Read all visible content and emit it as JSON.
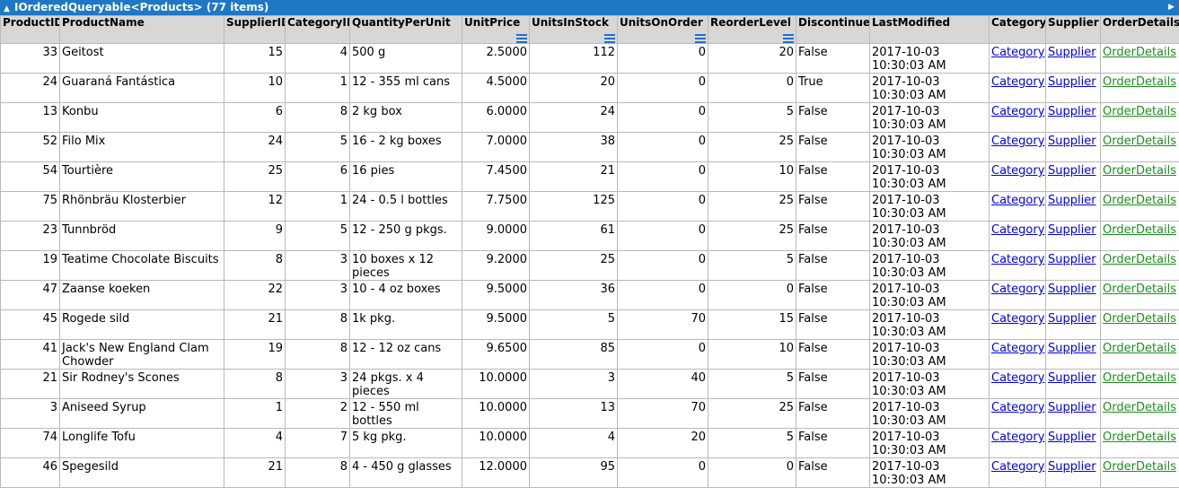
{
  "header": {
    "title": "IOrderedQueryable<Products> (77 items)",
    "collapse_icon": "triangle-up-icon",
    "scroll_icon": "triangle-right-icon"
  },
  "columns": [
    {
      "label": "ProductID",
      "sum": false
    },
    {
      "label": "ProductName",
      "sum": false
    },
    {
      "label": "SupplierID",
      "sum": false
    },
    {
      "label": "CategoryID",
      "sum": false
    },
    {
      "label": "QuantityPerUnit",
      "sum": false
    },
    {
      "label": "UnitPrice",
      "sum": true
    },
    {
      "label": "UnitsInStock",
      "sum": true
    },
    {
      "label": "UnitsOnOrder",
      "sum": true
    },
    {
      "label": "ReorderLevel",
      "sum": true
    },
    {
      "label": "Discontinued",
      "sum": false
    },
    {
      "label": "LastModified",
      "sum": false
    },
    {
      "label": "Category",
      "sum": false
    },
    {
      "label": "Supplier",
      "sum": false
    },
    {
      "label": "OrderDetails",
      "sum": false
    }
  ],
  "rows": [
    {
      "id": "33",
      "name": "Geitost",
      "supplier_id": "15",
      "category_id": "4",
      "qty": "500 g",
      "price": "2.5000",
      "stock": "112",
      "on_order": "0",
      "reorder": "20",
      "disc": "False",
      "modified": "2017-10-03 10:30:03 AM",
      "category": "Category",
      "supplier": "Supplier",
      "orders": "OrderDetails"
    },
    {
      "id": "24",
      "name": "Guaraná Fantástica",
      "supplier_id": "10",
      "category_id": "1",
      "qty": "12 - 355 ml cans",
      "price": "4.5000",
      "stock": "20",
      "on_order": "0",
      "reorder": "0",
      "disc": "True",
      "modified": "2017-10-03 10:30:03 AM",
      "category": "Category",
      "supplier": "Supplier",
      "orders": "OrderDetails"
    },
    {
      "id": "13",
      "name": "Konbu",
      "supplier_id": "6",
      "category_id": "8",
      "qty": "2 kg box",
      "price": "6.0000",
      "stock": "24",
      "on_order": "0",
      "reorder": "5",
      "disc": "False",
      "modified": "2017-10-03 10:30:03 AM",
      "category": "Category",
      "supplier": "Supplier",
      "orders": "OrderDetails"
    },
    {
      "id": "52",
      "name": "Filo Mix",
      "supplier_id": "24",
      "category_id": "5",
      "qty": "16 - 2 kg boxes",
      "price": "7.0000",
      "stock": "38",
      "on_order": "0",
      "reorder": "25",
      "disc": "False",
      "modified": "2017-10-03 10:30:03 AM",
      "category": "Category",
      "supplier": "Supplier",
      "orders": "OrderDetails"
    },
    {
      "id": "54",
      "name": "Tourtière",
      "supplier_id": "25",
      "category_id": "6",
      "qty": "16 pies",
      "price": "7.4500",
      "stock": "21",
      "on_order": "0",
      "reorder": "10",
      "disc": "False",
      "modified": "2017-10-03 10:30:03 AM",
      "category": "Category",
      "supplier": "Supplier",
      "orders": "OrderDetails"
    },
    {
      "id": "75",
      "name": "Rhönbräu Klosterbier",
      "supplier_id": "12",
      "category_id": "1",
      "qty": "24 - 0.5 l bottles",
      "price": "7.7500",
      "stock": "125",
      "on_order": "0",
      "reorder": "25",
      "disc": "False",
      "modified": "2017-10-03 10:30:03 AM",
      "category": "Category",
      "supplier": "Supplier",
      "orders": "OrderDetails"
    },
    {
      "id": "23",
      "name": "Tunnbröd",
      "supplier_id": "9",
      "category_id": "5",
      "qty": "12 - 250 g pkgs.",
      "price": "9.0000",
      "stock": "61",
      "on_order": "0",
      "reorder": "25",
      "disc": "False",
      "modified": "2017-10-03 10:30:03 AM",
      "category": "Category",
      "supplier": "Supplier",
      "orders": "OrderDetails"
    },
    {
      "id": "19",
      "name": "Teatime Chocolate Biscuits",
      "supplier_id": "8",
      "category_id": "3",
      "qty": "10 boxes x 12 pieces",
      "price": "9.2000",
      "stock": "25",
      "on_order": "0",
      "reorder": "5",
      "disc": "False",
      "modified": "2017-10-03 10:30:03 AM",
      "category": "Category",
      "supplier": "Supplier",
      "orders": "OrderDetails"
    },
    {
      "id": "47",
      "name": "Zaanse koeken",
      "supplier_id": "22",
      "category_id": "3",
      "qty": "10 - 4 oz boxes",
      "price": "9.5000",
      "stock": "36",
      "on_order": "0",
      "reorder": "0",
      "disc": "False",
      "modified": "2017-10-03 10:30:03 AM",
      "category": "Category",
      "supplier": "Supplier",
      "orders": "OrderDetails"
    },
    {
      "id": "45",
      "name": "Rogede sild",
      "supplier_id": "21",
      "category_id": "8",
      "qty": "1k pkg.",
      "price": "9.5000",
      "stock": "5",
      "on_order": "70",
      "reorder": "15",
      "disc": "False",
      "modified": "2017-10-03 10:30:03 AM",
      "category": "Category",
      "supplier": "Supplier",
      "orders": "OrderDetails"
    },
    {
      "id": "41",
      "name": "Jack's New England Clam Chowder",
      "supplier_id": "19",
      "category_id": "8",
      "qty": "12 - 12 oz cans",
      "price": "9.6500",
      "stock": "85",
      "on_order": "0",
      "reorder": "10",
      "disc": "False",
      "modified": "2017-10-03 10:30:03 AM",
      "category": "Category",
      "supplier": "Supplier",
      "orders": "OrderDetails"
    },
    {
      "id": "21",
      "name": "Sir Rodney's Scones",
      "supplier_id": "8",
      "category_id": "3",
      "qty": "24 pkgs. x 4 pieces",
      "price": "10.0000",
      "stock": "3",
      "on_order": "40",
      "reorder": "5",
      "disc": "False",
      "modified": "2017-10-03 10:30:03 AM",
      "category": "Category",
      "supplier": "Supplier",
      "orders": "OrderDetails"
    },
    {
      "id": "3",
      "name": "Aniseed Syrup",
      "supplier_id": "1",
      "category_id": "2",
      "qty": "12 - 550 ml bottles",
      "price": "10.0000",
      "stock": "13",
      "on_order": "70",
      "reorder": "25",
      "disc": "False",
      "modified": "2017-10-03 10:30:03 AM",
      "category": "Category",
      "supplier": "Supplier",
      "orders": "OrderDetails"
    },
    {
      "id": "74",
      "name": "Longlife Tofu",
      "supplier_id": "4",
      "category_id": "7",
      "qty": "5 kg pkg.",
      "price": "10.0000",
      "stock": "4",
      "on_order": "20",
      "reorder": "5",
      "disc": "False",
      "modified": "2017-10-03 10:30:03 AM",
      "category": "Category",
      "supplier": "Supplier",
      "orders": "OrderDetails"
    },
    {
      "id": "46",
      "name": "Spegesild",
      "supplier_id": "21",
      "category_id": "8",
      "qty": "4 - 450 g glasses",
      "price": "12.0000",
      "stock": "95",
      "on_order": "0",
      "reorder": "0",
      "disc": "False",
      "modified": "2017-10-03 10:30:03 AM",
      "category": "Category",
      "supplier": "Supplier",
      "orders": "OrderDetails"
    }
  ],
  "colors": {
    "header_bar": "#1e78c6",
    "header_row": "#d7d7d7",
    "link_blue": "#0000ee",
    "link_green": "#1e8e1e"
  }
}
